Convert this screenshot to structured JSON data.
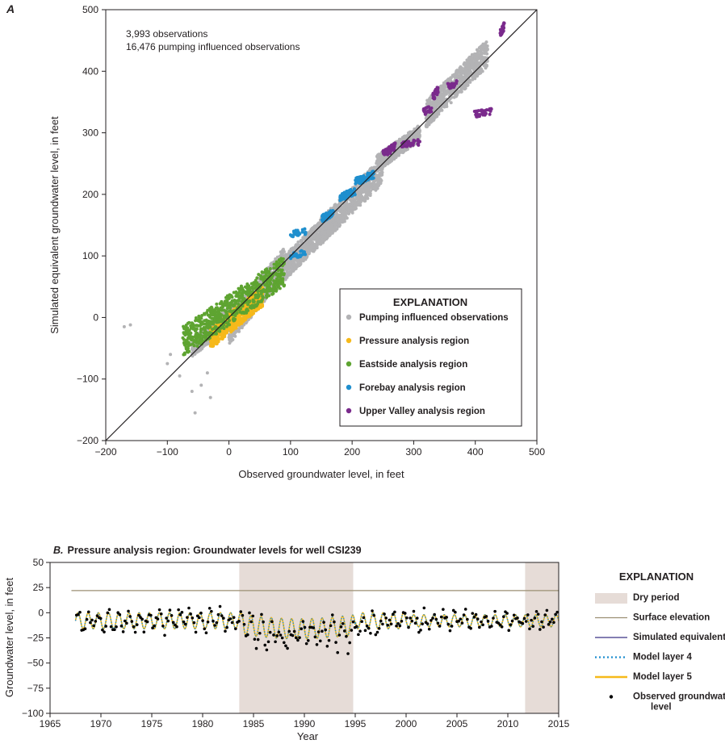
{
  "chart_data": [
    {
      "panel": "A",
      "type": "scatter",
      "panel_label": "A",
      "xlabel": "Observed groundwater level, in feet",
      "ylabel": "Simulated equivalent groundwater level, in feet",
      "xlim": [
        -200,
        500
      ],
      "ylim": [
        -200,
        500
      ],
      "x_ticks": [
        -200,
        -100,
        0,
        100,
        200,
        300,
        400,
        500
      ],
      "y_ticks": [
        -200,
        -100,
        0,
        100,
        200,
        300,
        400,
        500
      ],
      "x_tick_labels": [
        "−200",
        "−100",
        "0",
        "100",
        "200",
        "300",
        "400",
        "500"
      ],
      "y_tick_labels": [
        "−200",
        "−100",
        "0",
        "100",
        "200",
        "300",
        "400",
        "500"
      ],
      "annotations": [
        "3,993 observations",
        "16,476 pumping influenced observations"
      ],
      "one_to_one_line": [
        [
          -200,
          -200
        ],
        [
          500,
          500
        ]
      ],
      "grid": false,
      "legend_title": "EXPLANATION",
      "legend_position": "bottom-right",
      "series": [
        {
          "name": "Pumping influenced observations",
          "color": "#b3b3b5",
          "clusters": [
            {
              "x": [
                -60,
                10
              ],
              "y": [
                -50,
                10
              ]
            },
            {
              "x": [
                0,
                90
              ],
              "y": [
                -20,
                90
              ]
            },
            {
              "x": [
                80,
                170
              ],
              "y": [
                70,
                160
              ]
            },
            {
              "x": [
                150,
                250
              ],
              "y": [
                140,
                240
              ]
            },
            {
              "x": [
                240,
                310
              ],
              "y": [
                250,
                300
              ]
            },
            {
              "x": [
                320,
                420
              ],
              "y": [
                330,
                430
              ]
            }
          ],
          "outliers": [
            [
              -170,
              -15
            ],
            [
              -160,
              -12
            ],
            [
              -55,
              -155
            ],
            [
              -30,
              -130
            ],
            [
              -45,
              -110
            ],
            [
              -80,
              -95
            ],
            [
              -95,
              -60
            ],
            [
              -100,
              -75
            ],
            [
              -35,
              -90
            ],
            [
              -60,
              -120
            ]
          ]
        },
        {
          "name": "Pressure analysis region",
          "color": "#f6b91a",
          "clusters": [
            {
              "x": [
                -30,
                55
              ],
              "y": [
                -35,
                35
              ]
            }
          ]
        },
        {
          "name": "Eastside analysis region",
          "color": "#5ea431",
          "clusters": [
            {
              "x": [
                -75,
                90
              ],
              "y": [
                -40,
                75
              ]
            }
          ]
        },
        {
          "name": "Forebay analysis region",
          "color": "#1f8fce",
          "clusters": [
            {
              "x": [
                100,
                125
              ],
              "y": [
                100,
                105
              ]
            },
            {
              "x": [
                100,
                125
              ],
              "y": [
                135,
                140
              ]
            },
            {
              "x": [
                150,
                170
              ],
              "y": [
                160,
                170
              ]
            },
            {
              "x": [
                180,
                205
              ],
              "y": [
                195,
                205
              ]
            },
            {
              "x": [
                205,
                235
              ],
              "y": [
                220,
                232
              ]
            }
          ]
        },
        {
          "name": "Upper Valley analysis region",
          "color": "#7a2a8c",
          "clusters": [
            {
              "x": [
                250,
                270
              ],
              "y": [
                265,
                278
              ]
            },
            {
              "x": [
                280,
                310
              ],
              "y": [
                280,
                285
              ]
            },
            {
              "x": [
                315,
                330
              ],
              "y": [
                333,
                340
              ]
            },
            {
              "x": [
                330,
                340
              ],
              "y": [
                357,
                370
              ]
            },
            {
              "x": [
                355,
                370
              ],
              "y": [
                375,
                380
              ]
            },
            {
              "x": [
                398,
                428
              ],
              "y": [
                330,
                335
              ]
            },
            {
              "x": [
                440,
                448
              ],
              "y": [
                462,
                475
              ]
            }
          ]
        }
      ]
    },
    {
      "panel": "B",
      "type": "line",
      "title_prefix": "B.",
      "title": "Pressure analysis region:  Groundwater levels for well CSI239",
      "xlabel": "Year",
      "ylabel": "Groundwater level, in feet",
      "xlim": [
        1965,
        2015
      ],
      "ylim": [
        -100,
        50
      ],
      "x_ticks": [
        1965,
        1970,
        1975,
        1980,
        1985,
        1990,
        1995,
        2000,
        2005,
        2010,
        2015
      ],
      "y_ticks": [
        -100,
        -75,
        -50,
        -25,
        0,
        25,
        50
      ],
      "x_tick_labels": [
        "1965",
        "1970",
        "1975",
        "1980",
        "1985",
        "1990",
        "1995",
        "2000",
        "2005",
        "2010",
        "2015"
      ],
      "y_tick_labels": [
        "−100",
        "−75",
        "−50",
        "−25",
        "0",
        "25",
        "50"
      ],
      "dry_periods": [
        [
          1983.6,
          1994.8
        ],
        [
          2011.7,
          2015
        ]
      ],
      "surface_elevation": 22,
      "simulated_range": [
        1967.5,
        2015
      ],
      "legend_title": "EXPLANATION",
      "legend_position": "right",
      "legend": [
        {
          "name": "Dry period",
          "kind": "patch",
          "color": "#e6dcd7"
        },
        {
          "name": "Surface elevation",
          "kind": "line",
          "color": "#9b8f73"
        },
        {
          "name": "Simulated equivalent",
          "kind": "line",
          "color": "#3a3283"
        },
        {
          "name": "Model layer 4",
          "kind": "dotted",
          "color": "#1e8ecf"
        },
        {
          "name": "Model layer 5",
          "kind": "line",
          "color": "#f6b91a"
        },
        {
          "name": "Observed groundwater level",
          "kind": "dot",
          "color": "#000000"
        }
      ]
    }
  ]
}
